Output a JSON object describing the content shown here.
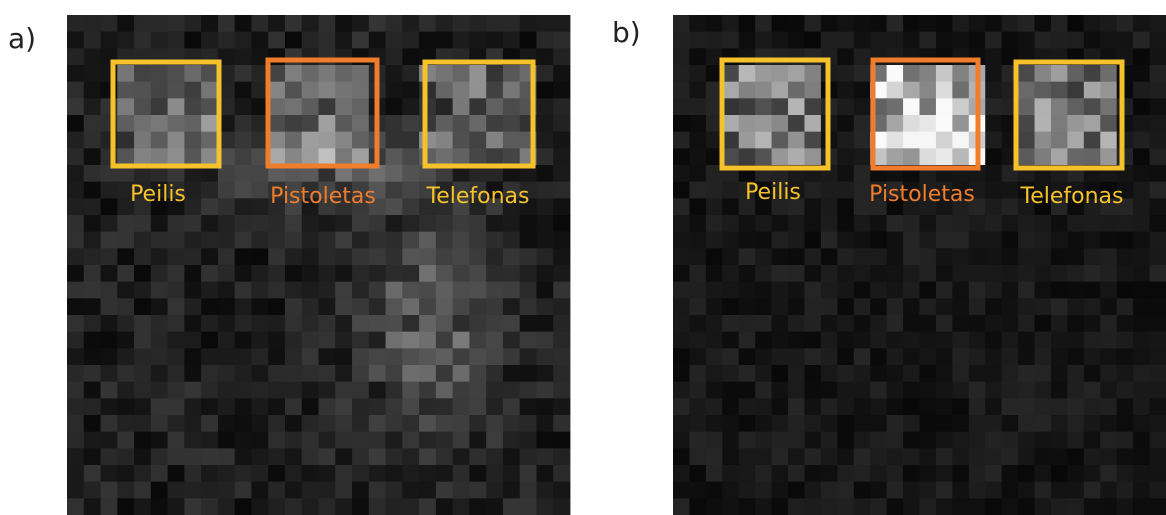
{
  "panels": [
    {
      "label": "a)",
      "regions": [
        {
          "label": "Peilis"
        },
        {
          "label": "Pistoletas"
        },
        {
          "label": "Telefonas"
        }
      ]
    },
    {
      "label": "b)",
      "regions": [
        {
          "label": "Peilis"
        },
        {
          "label": "Pistoletas"
        },
        {
          "label": "Telefonas"
        }
      ]
    }
  ]
}
